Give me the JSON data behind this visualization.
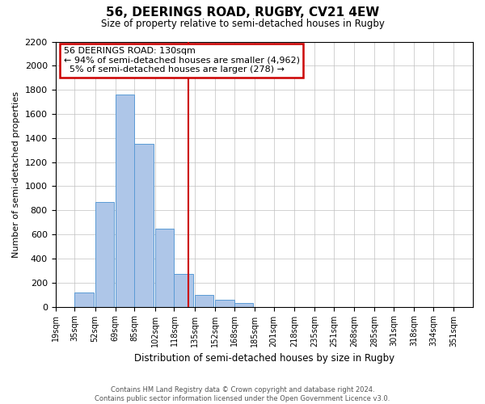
{
  "title": "56, DEERINGS ROAD, RUGBY, CV21 4EW",
  "subtitle": "Size of property relative to semi-detached houses in Rugby",
  "xlabel": "Distribution of semi-detached houses by size in Rugby",
  "ylabel": "Number of semi-detached properties",
  "footer_lines": [
    "Contains HM Land Registry data © Crown copyright and database right 2024.",
    "Contains public sector information licensed under the Open Government Licence v3.0."
  ],
  "bin_labels": [
    "19sqm",
    "35sqm",
    "52sqm",
    "69sqm",
    "85sqm",
    "102sqm",
    "118sqm",
    "135sqm",
    "152sqm",
    "168sqm",
    "185sqm",
    "201sqm",
    "218sqm",
    "235sqm",
    "251sqm",
    "268sqm",
    "285sqm",
    "301sqm",
    "318sqm",
    "334sqm",
    "351sqm"
  ],
  "bin_edges": [
    19,
    35,
    52,
    69,
    85,
    102,
    118,
    135,
    152,
    168,
    185,
    201,
    218,
    235,
    251,
    268,
    285,
    301,
    318,
    334,
    351,
    367
  ],
  "bar_heights": [
    0,
    120,
    870,
    1760,
    1355,
    645,
    270,
    100,
    55,
    30,
    0,
    0,
    0,
    0,
    0,
    0,
    0,
    0,
    0,
    0,
    0
  ],
  "bar_color": "#aec6e8",
  "bar_edge_color": "#5b9bd5",
  "property_size": 130,
  "pct_smaller": 94,
  "n_smaller": 4962,
  "pct_larger": 5,
  "n_larger": 278,
  "vline_color": "#cc0000",
  "annotation_box_edge_color": "#cc0000",
  "ylim": [
    0,
    2200
  ],
  "yticks": [
    0,
    200,
    400,
    600,
    800,
    1000,
    1200,
    1400,
    1600,
    1800,
    2000,
    2200
  ],
  "background_color": "#ffffff",
  "grid_color": "#c0c0c0"
}
